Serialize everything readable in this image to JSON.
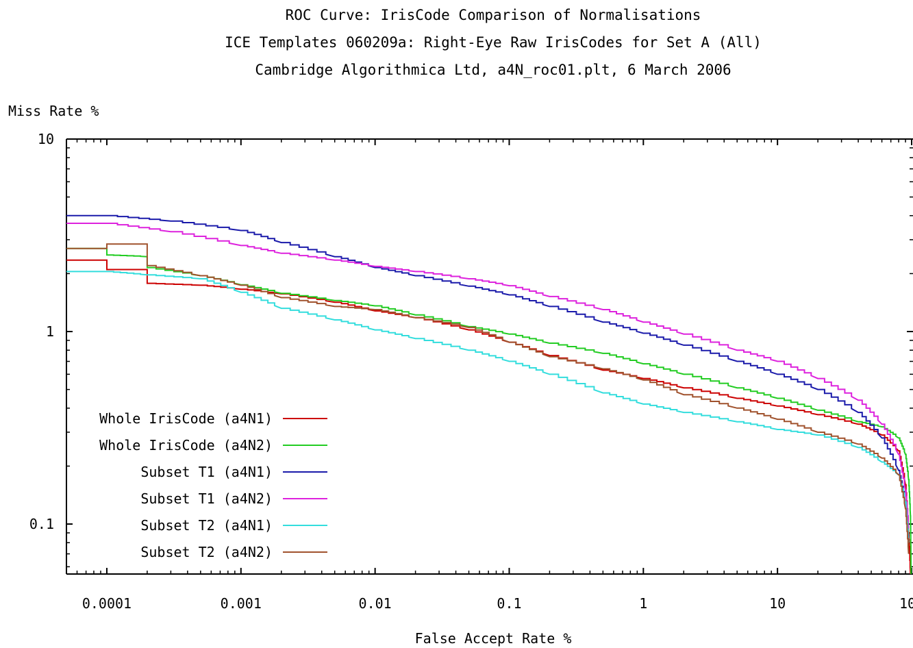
{
  "chart_data": {
    "type": "line",
    "title": "ROC Curve: IrisCode Comparison of Normalisations",
    "subtitle": "ICE Templates 060209a: Right-Eye Raw IrisCodes for Set A (All)",
    "credit": "Cambridge Algorithmica Ltd, a4N_roc01.plt, 6 March 2006",
    "xlabel": "False Accept Rate %",
    "ylabel": "Miss Rate %",
    "xscale": "log",
    "yscale": "log",
    "xlim": [
      5e-05,
      100
    ],
    "ylim": [
      0.055,
      10
    ],
    "xticks": [
      {
        "value": 0.0001,
        "label": "0.0001"
      },
      {
        "value": 0.001,
        "label": "0.001"
      },
      {
        "value": 0.01,
        "label": "0.01"
      },
      {
        "value": 0.1,
        "label": "0.1"
      },
      {
        "value": 1,
        "label": "1"
      },
      {
        "value": 10,
        "label": "10"
      },
      {
        "value": 100,
        "label": "100"
      }
    ],
    "yticks": [
      {
        "value": 0.1,
        "label": "0.1"
      },
      {
        "value": 1,
        "label": "1"
      },
      {
        "value": 10,
        "label": "10"
      }
    ],
    "grid": false,
    "legend_position": "bottom-left",
    "series": [
      {
        "name": "Whole IrisCode (a4N1)",
        "color": "#cc0000",
        "points": [
          [
            5e-05,
            2.35
          ],
          [
            0.0001,
            2.35
          ],
          [
            0.0001,
            2.1
          ],
          [
            0.0002,
            2.1
          ],
          [
            0.0002,
            1.78
          ],
          [
            0.0005,
            1.74
          ],
          [
            0.001,
            1.66
          ],
          [
            0.002,
            1.57
          ],
          [
            0.005,
            1.42
          ],
          [
            0.01,
            1.28
          ],
          [
            0.02,
            1.18
          ],
          [
            0.05,
            1.02
          ],
          [
            0.1,
            0.88
          ],
          [
            0.2,
            0.75
          ],
          [
            0.5,
            0.63
          ],
          [
            1,
            0.57
          ],
          [
            2,
            0.51
          ],
          [
            5,
            0.45
          ],
          [
            10,
            0.41
          ],
          [
            20,
            0.37
          ],
          [
            40,
            0.33
          ],
          [
            60,
            0.29
          ],
          [
            80,
            0.24
          ],
          [
            90,
            0.16
          ],
          [
            95,
            0.09
          ],
          [
            98,
            0.055
          ]
        ]
      },
      {
        "name": "Whole IrisCode (a4N2)",
        "color": "#22cc22",
        "points": [
          [
            5e-05,
            2.7
          ],
          [
            0.0001,
            2.7
          ],
          [
            0.0001,
            2.5
          ],
          [
            0.0002,
            2.45
          ],
          [
            0.0002,
            2.15
          ],
          [
            0.0005,
            1.95
          ],
          [
            0.001,
            1.75
          ],
          [
            0.002,
            1.58
          ],
          [
            0.005,
            1.45
          ],
          [
            0.01,
            1.36
          ],
          [
            0.02,
            1.22
          ],
          [
            0.05,
            1.06
          ],
          [
            0.1,
            0.97
          ],
          [
            0.2,
            0.87
          ],
          [
            0.5,
            0.77
          ],
          [
            1,
            0.68
          ],
          [
            2,
            0.6
          ],
          [
            5,
            0.51
          ],
          [
            10,
            0.45
          ],
          [
            20,
            0.39
          ],
          [
            40,
            0.34
          ],
          [
            60,
            0.32
          ],
          [
            80,
            0.28
          ],
          [
            90,
            0.23
          ],
          [
            95,
            0.17
          ],
          [
            98,
            0.11
          ],
          [
            99,
            0.055
          ]
        ]
      },
      {
        "name": "Subset T1 (a4N1)",
        "color": "#1a1aaa",
        "points": [
          [
            5e-05,
            4.0
          ],
          [
            0.0001,
            4.0
          ],
          [
            0.0003,
            3.75
          ],
          [
            0.001,
            3.35
          ],
          [
            0.002,
            2.9
          ],
          [
            0.005,
            2.45
          ],
          [
            0.01,
            2.15
          ],
          [
            0.02,
            1.95
          ],
          [
            0.05,
            1.72
          ],
          [
            0.1,
            1.55
          ],
          [
            0.2,
            1.35
          ],
          [
            0.5,
            1.12
          ],
          [
            1,
            0.98
          ],
          [
            2,
            0.85
          ],
          [
            5,
            0.7
          ],
          [
            10,
            0.6
          ],
          [
            20,
            0.5
          ],
          [
            40,
            0.38
          ],
          [
            60,
            0.28
          ],
          [
            80,
            0.19
          ],
          [
            90,
            0.13
          ],
          [
            95,
            0.085
          ]
        ]
      },
      {
        "name": "Subset T1 (a4N2)",
        "color": "#dd22dd",
        "points": [
          [
            5e-05,
            3.65
          ],
          [
            0.0001,
            3.65
          ],
          [
            0.0003,
            3.3
          ],
          [
            0.001,
            2.8
          ],
          [
            0.002,
            2.55
          ],
          [
            0.005,
            2.35
          ],
          [
            0.01,
            2.18
          ],
          [
            0.02,
            2.05
          ],
          [
            0.05,
            1.88
          ],
          [
            0.1,
            1.73
          ],
          [
            0.2,
            1.52
          ],
          [
            0.5,
            1.3
          ],
          [
            1,
            1.12
          ],
          [
            2,
            0.97
          ],
          [
            5,
            0.8
          ],
          [
            10,
            0.7
          ],
          [
            20,
            0.57
          ],
          [
            40,
            0.44
          ],
          [
            60,
            0.33
          ],
          [
            80,
            0.23
          ],
          [
            90,
            0.15
          ],
          [
            95,
            0.095
          ]
        ]
      },
      {
        "name": "Subset T2 (a4N1)",
        "color": "#33dddd",
        "points": [
          [
            5e-05,
            2.05
          ],
          [
            0.0001,
            2.05
          ],
          [
            0.0002,
            1.97
          ],
          [
            0.0005,
            1.88
          ],
          [
            0.001,
            1.6
          ],
          [
            0.002,
            1.32
          ],
          [
            0.005,
            1.15
          ],
          [
            0.01,
            1.02
          ],
          [
            0.02,
            0.92
          ],
          [
            0.05,
            0.8
          ],
          [
            0.1,
            0.7
          ],
          [
            0.2,
            0.6
          ],
          [
            0.5,
            0.48
          ],
          [
            1,
            0.42
          ],
          [
            2,
            0.38
          ],
          [
            5,
            0.34
          ],
          [
            10,
            0.31
          ],
          [
            20,
            0.29
          ],
          [
            40,
            0.25
          ],
          [
            60,
            0.21
          ],
          [
            80,
            0.18
          ],
          [
            90,
            0.13
          ],
          [
            95,
            0.08
          ]
        ]
      },
      {
        "name": "Subset T2 (a4N2)",
        "color": "#a0522d",
        "points": [
          [
            5e-05,
            2.7
          ],
          [
            0.0001,
            2.7
          ],
          [
            0.0001,
            2.85
          ],
          [
            0.0002,
            2.85
          ],
          [
            0.0002,
            2.2
          ],
          [
            0.0005,
            1.95
          ],
          [
            0.001,
            1.74
          ],
          [
            0.002,
            1.5
          ],
          [
            0.005,
            1.35
          ],
          [
            0.01,
            1.3
          ],
          [
            0.02,
            1.18
          ],
          [
            0.05,
            1.05
          ],
          [
            0.1,
            0.88
          ],
          [
            0.2,
            0.74
          ],
          [
            0.5,
            0.64
          ],
          [
            1,
            0.56
          ],
          [
            2,
            0.47
          ],
          [
            5,
            0.4
          ],
          [
            10,
            0.35
          ],
          [
            20,
            0.3
          ],
          [
            40,
            0.26
          ],
          [
            60,
            0.22
          ],
          [
            80,
            0.18
          ],
          [
            90,
            0.12
          ],
          [
            95,
            0.07
          ]
        ]
      }
    ]
  }
}
